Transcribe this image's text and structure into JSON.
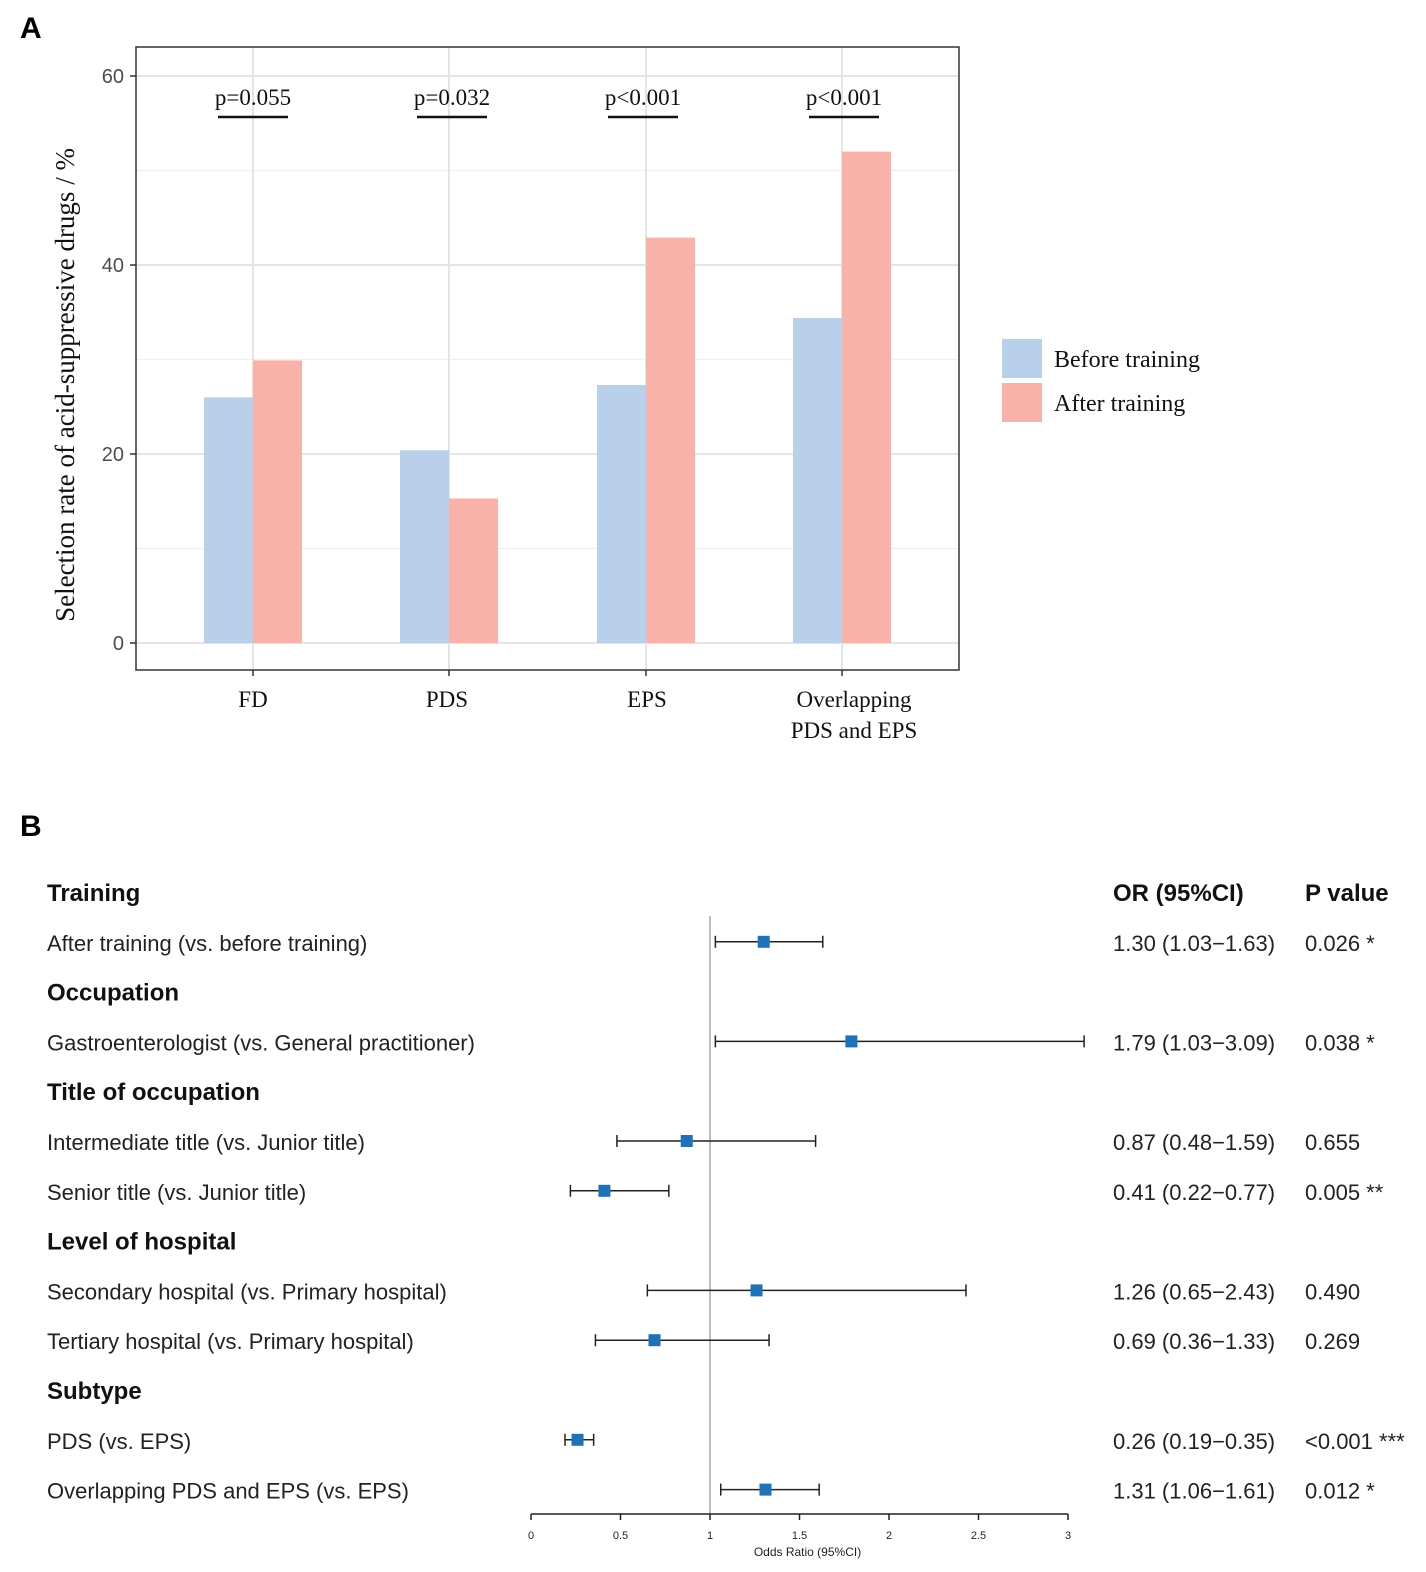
{
  "panels": {
    "a": "A",
    "b": "B"
  },
  "chart_data": [
    {
      "type": "bar",
      "ylabel": "Selection rate of acid-suppressive drugs / %",
      "ylim": [
        0,
        63
      ],
      "yticks": [
        "0",
        "20",
        "40",
        "60"
      ],
      "categories": [
        "FD",
        "PDS",
        "EPS",
        "Overlapping PDS and EPS"
      ],
      "category_lines": [
        [
          "FD"
        ],
        [
          "PDS"
        ],
        [
          "EPS"
        ],
        [
          "Overlapping",
          "PDS and EPS"
        ]
      ],
      "series": [
        {
          "name": "Before training",
          "color": "#B8D0EA",
          "values": [
            26.0,
            20.4,
            27.3,
            34.4
          ]
        },
        {
          "name": "After training",
          "color": "#F8B2AA",
          "values": [
            29.9,
            15.3,
            42.9,
            52.0
          ]
        }
      ],
      "annotations": [
        "p=0.055",
        "p=0.032",
        "p<0.001",
        "p<0.001"
      ],
      "legend": "right",
      "grid": true
    },
    {
      "type": "forest",
      "xlabel": "Odds Ratio (95%CI)",
      "xlim": [
        0,
        3
      ],
      "xticks": [
        "0",
        "0.5",
        "1",
        "1.5",
        "2",
        "2.5",
        "3"
      ],
      "reference": 1,
      "header": {
        "or": "OR (95%CI)",
        "p": "P value"
      },
      "marker_color": "#1F72B8",
      "rows": [
        {
          "kind": "group",
          "label": "Training"
        },
        {
          "kind": "item",
          "label": "After training (vs. before training)",
          "or": 1.3,
          "lo": 1.03,
          "hi": 1.63,
          "or_text": "1.30 (1.03−1.63)",
          "p_text": "0.026 *"
        },
        {
          "kind": "group",
          "label": "Occupation"
        },
        {
          "kind": "item",
          "label": "Gastroenterologist (vs. General practitioner)",
          "or": 1.79,
          "lo": 1.03,
          "hi": 3.09,
          "or_text": "1.79 (1.03−3.09)",
          "p_text": "0.038 *"
        },
        {
          "kind": "group",
          "label": "Title of occupation"
        },
        {
          "kind": "item",
          "label": "Intermediate title (vs. Junior title)",
          "or": 0.87,
          "lo": 0.48,
          "hi": 1.59,
          "or_text": "0.87 (0.48−1.59)",
          "p_text": "0.655"
        },
        {
          "kind": "item",
          "label": "Senior title (vs. Junior title)",
          "or": 0.41,
          "lo": 0.22,
          "hi": 0.77,
          "or_text": "0.41 (0.22−0.77)",
          "p_text": "0.005 **"
        },
        {
          "kind": "group",
          "label": "Level of hospital"
        },
        {
          "kind": "item",
          "label": "Secondary hospital (vs. Primary hospital)",
          "or": 1.26,
          "lo": 0.65,
          "hi": 2.43,
          "or_text": "1.26 (0.65−2.43)",
          "p_text": "0.490"
        },
        {
          "kind": "item",
          "label": "Tertiary hospital (vs. Primary hospital)",
          "or": 0.69,
          "lo": 0.36,
          "hi": 1.33,
          "or_text": "0.69 (0.36−1.33)",
          "p_text": "0.269"
        },
        {
          "kind": "group",
          "label": "Subtype"
        },
        {
          "kind": "item",
          "label": "PDS (vs. EPS)",
          "or": 0.26,
          "lo": 0.19,
          "hi": 0.35,
          "or_text": "0.26 (0.19−0.35)",
          "p_text": "<0.001 ***"
        },
        {
          "kind": "item",
          "label": "Overlapping PDS and EPS  (vs. EPS)",
          "or": 1.31,
          "lo": 1.06,
          "hi": 1.61,
          "or_text": "1.31 (1.06−1.61)",
          "p_text": "0.012 *"
        }
      ]
    }
  ]
}
